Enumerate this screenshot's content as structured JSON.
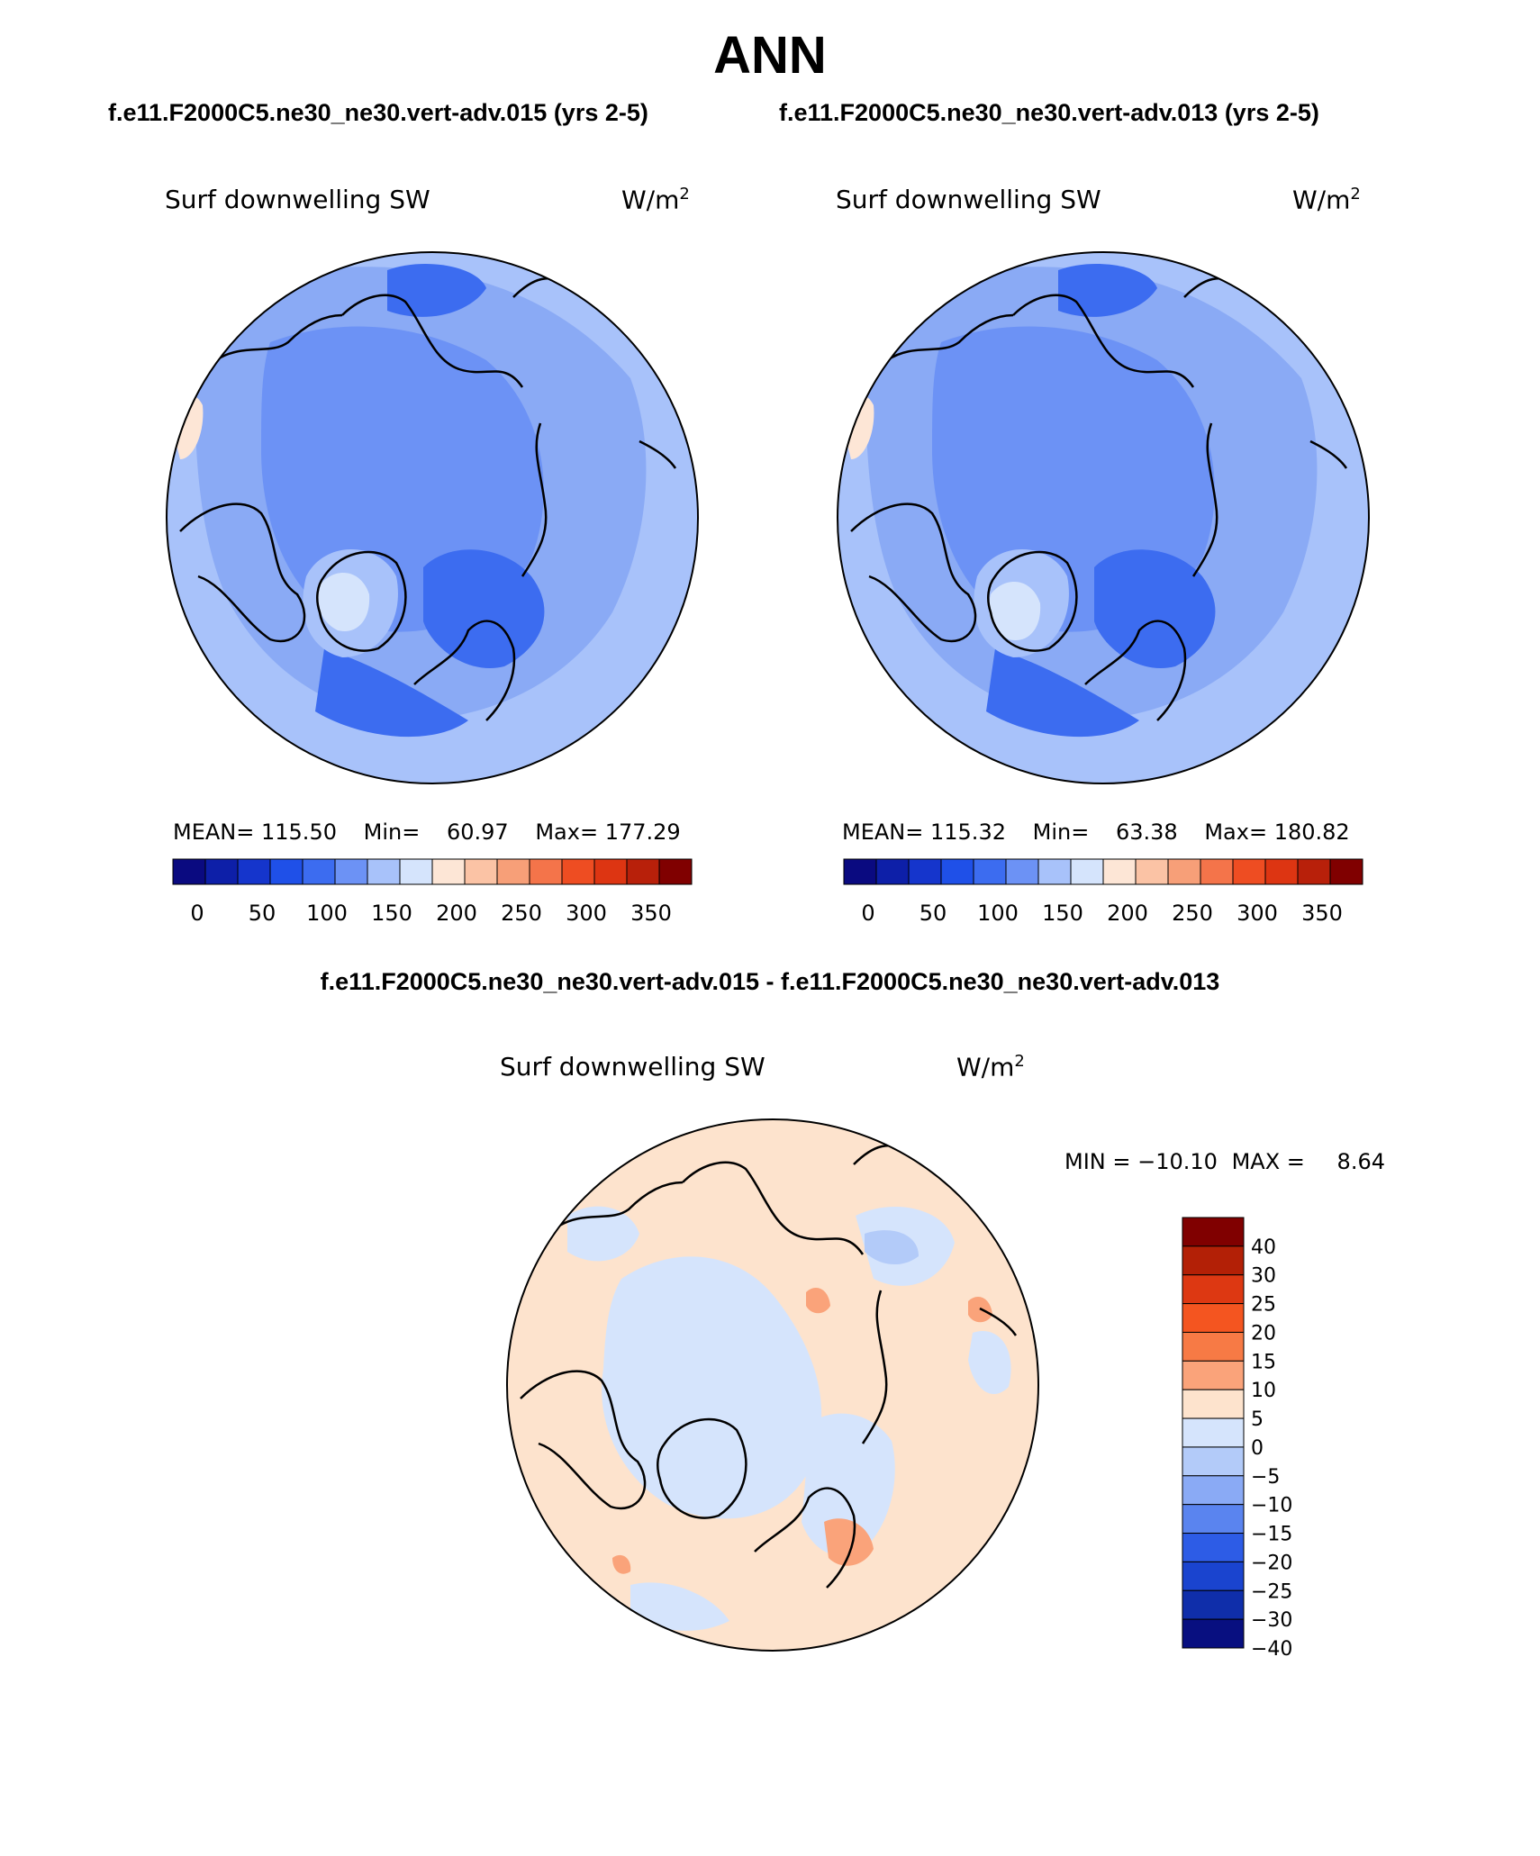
{
  "title": "ANN",
  "case_titles": {
    "left": "f.e11.F2000C5.ne30_ne30.vert-adv.015 (yrs 2-5)",
    "right": "f.e11.F2000C5.ne30_ne30.vert-adv.013 (yrs 2-5)"
  },
  "diff_title": "f.e11.F2000C5.ne30_ne30.vert-adv.015 - f.e11.F2000C5.ne30_ne30.vert-adv.013",
  "variable": "Surf downwelling SW",
  "units": "W/m",
  "units_exp": "2",
  "panels": {
    "left": {
      "mean_label": "MEAN=",
      "mean": "115.50",
      "min_label": "Min=",
      "min": "60.97",
      "max_label": "Max=",
      "max": "177.29"
    },
    "right": {
      "mean_label": "MEAN=",
      "mean": "115.32",
      "min_label": "Min=",
      "min": "63.38",
      "max_label": "Max=",
      "max": "180.82"
    },
    "diff": {
      "min_label": "MIN =",
      "min": "−10.10",
      "max_label": "MAX =",
      "max": "8.64"
    }
  },
  "colorbar_top": {
    "colors": [
      "#0a0a80",
      "#0d1fa8",
      "#1535cc",
      "#1f50e8",
      "#3c6cf0",
      "#6c92f5",
      "#a8c2fa",
      "#d5e4fc",
      "#fde6d6",
      "#fbc3a5",
      "#f79f78",
      "#f4744a",
      "#ee4d22",
      "#dd3512",
      "#b8200a",
      "#800000"
    ],
    "tick_labels": [
      "0",
      "50",
      "100",
      "150",
      "200",
      "250",
      "300",
      "350"
    ]
  },
  "colorbar_diff": {
    "colors": [
      "#800000",
      "#b32006",
      "#dd3812",
      "#f45520",
      "#f77a45",
      "#faa37a",
      "#fde3cd",
      "#d5e4fc",
      "#b3cbf9",
      "#8aaaf5",
      "#5a84ef",
      "#2d5ce6",
      "#1a44cf",
      "#0f2eaa",
      "#080f80"
    ],
    "tick_labels": [
      "40",
      "30",
      "25",
      "20",
      "15",
      "10",
      "5",
      "0",
      "−5",
      "−10",
      "−15",
      "−20",
      "−25",
      "−30",
      "−40"
    ]
  },
  "chart_data": [
    {
      "type": "heatmap",
      "title": "Surf downwelling SW",
      "case": "f.e11.F2000C5.ne30_ne30.vert-adv.015 (yrs 2-5)",
      "units": "W/m2",
      "mean": 115.5,
      "min": 60.97,
      "max": 177.29,
      "contour_levels": [
        0,
        25,
        50,
        75,
        100,
        125,
        150,
        175,
        200,
        225,
        250,
        275,
        300,
        325,
        350
      ]
    },
    {
      "type": "heatmap",
      "title": "Surf downwelling SW",
      "case": "f.e11.F2000C5.ne30_ne30.vert-adv.013 (yrs 2-5)",
      "units": "W/m2",
      "mean": 115.32,
      "min": 63.38,
      "max": 180.82,
      "contour_levels": [
        0,
        25,
        50,
        75,
        100,
        125,
        150,
        175,
        200,
        225,
        250,
        275,
        300,
        325,
        350
      ]
    },
    {
      "type": "heatmap",
      "title": "Surf downwelling SW",
      "case": "f.e11.F2000C5.ne30_ne30.vert-adv.015 - f.e11.F2000C5.ne30_ne30.vert-adv.013",
      "units": "W/m2",
      "min": -10.1,
      "max": 8.64,
      "contour_levels": [
        -40,
        -30,
        -25,
        -20,
        -15,
        -10,
        -5,
        0,
        5,
        10,
        15,
        20,
        25,
        30,
        40
      ]
    }
  ]
}
